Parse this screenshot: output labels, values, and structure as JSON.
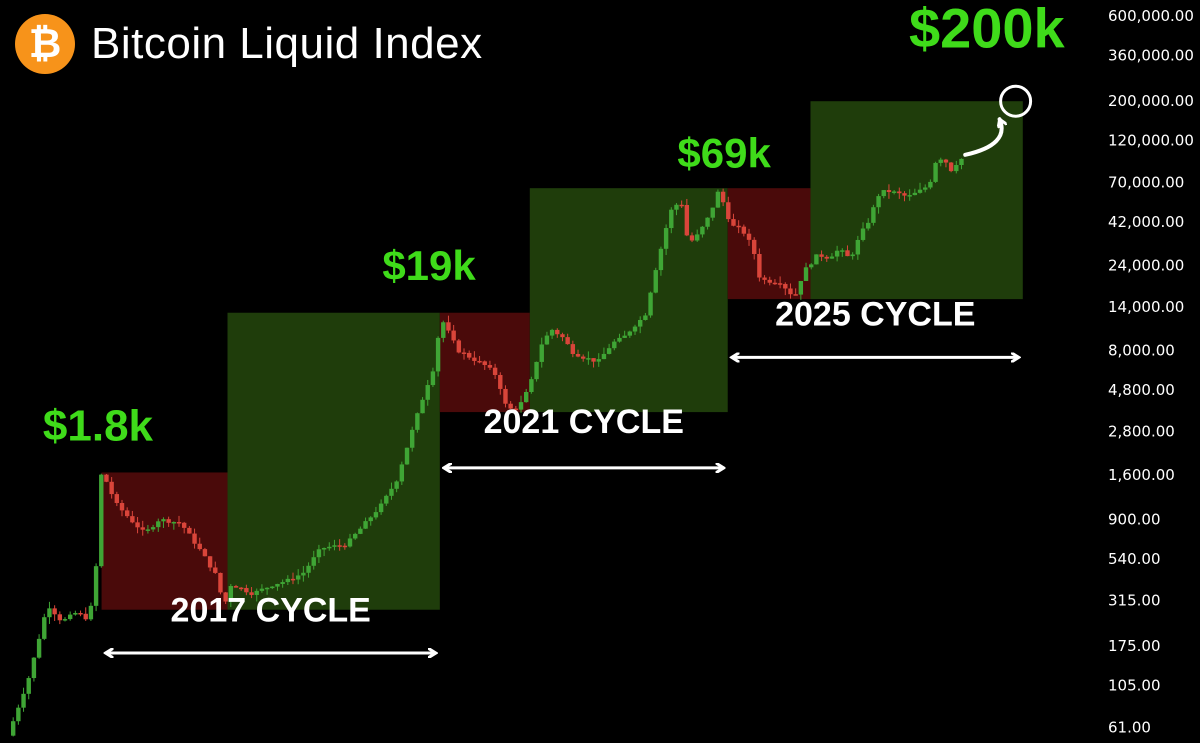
{
  "header": {
    "title": "Bitcoin Liquid Index",
    "logo_symbol": "₿",
    "logo_color": "#f7931a"
  },
  "colors": {
    "background": "#000000",
    "up_candle": "#3fa535",
    "down_candle": "#d9453a",
    "bull_zone": "#1f3d0b",
    "bear_zone": "#4a0a0a",
    "annotation_green": "#3fdb1a",
    "text": "#ffffff"
  },
  "chart_data": {
    "type": "candlestick",
    "title": "Bitcoin Liquid Index",
    "yscale": "log",
    "ylim": [
      52,
      650000
    ],
    "xlim": [
      2012.0,
      2026.2
    ],
    "y_ticks": [
      {
        "value": 600000,
        "label": "600,000.00"
      },
      {
        "value": 360000,
        "label": "360,000.00"
      },
      {
        "value": 200000,
        "label": "200,000.00"
      },
      {
        "value": 120000,
        "label": "120,000.00"
      },
      {
        "value": 70000,
        "label": "70,000.00"
      },
      {
        "value": 42000,
        "label": "42,000.00"
      },
      {
        "value": 24000,
        "label": "24,000.00"
      },
      {
        "value": 14000,
        "label": "14,000.00"
      },
      {
        "value": 8000,
        "label": "8,000.00"
      },
      {
        "value": 4800,
        "label": "4,800.00"
      },
      {
        "value": 2800,
        "label": "2,800.00"
      },
      {
        "value": 1600,
        "label": "1,600.00"
      },
      {
        "value": 900,
        "label": "900.00"
      },
      {
        "value": 540,
        "label": "540.00"
      },
      {
        "value": 315,
        "label": "315.00"
      },
      {
        "value": 175,
        "label": "175.00"
      },
      {
        "value": 105,
        "label": "105.00"
      },
      {
        "value": 61,
        "label": "61.00"
      }
    ],
    "price_path": [
      [
        2012.0,
        55
      ],
      [
        2012.3,
        120
      ],
      [
        2012.55,
        300
      ],
      [
        2012.75,
        240
      ],
      [
        2012.95,
        270
      ],
      [
        2013.1,
        250
      ],
      [
        2013.2,
        330
      ],
      [
        2013.3,
        1700
      ],
      [
        2013.5,
        1100
      ],
      [
        2013.7,
        900
      ],
      [
        2013.9,
        750
      ],
      [
        2014.1,
        900
      ],
      [
        2014.4,
        860
      ],
      [
        2014.7,
        580
      ],
      [
        2014.9,
        430
      ],
      [
        2015.0,
        290
      ],
      [
        2015.1,
        390
      ],
      [
        2015.4,
        345
      ],
      [
        2015.7,
        390
      ],
      [
        2015.9,
        410
      ],
      [
        2016.1,
        450
      ],
      [
        2016.35,
        620
      ],
      [
        2016.7,
        650
      ],
      [
        2016.9,
        800
      ],
      [
        2017.2,
        1100
      ],
      [
        2017.4,
        1500
      ],
      [
        2017.6,
        2700
      ],
      [
        2017.8,
        4800
      ],
      [
        2017.95,
        7000
      ],
      [
        2018.0,
        12500
      ],
      [
        2018.1,
        10500
      ],
      [
        2018.25,
        8000
      ],
      [
        2018.45,
        7200
      ],
      [
        2018.65,
        6500
      ],
      [
        2018.8,
        5700
      ],
      [
        2018.9,
        4000
      ],
      [
        2019.0,
        3700
      ],
      [
        2019.1,
        3850
      ],
      [
        2019.25,
        5000
      ],
      [
        2019.4,
        8500
      ],
      [
        2019.55,
        10500
      ],
      [
        2019.7,
        9500
      ],
      [
        2019.85,
        7800
      ],
      [
        2020.0,
        7300
      ],
      [
        2020.2,
        6900
      ],
      [
        2020.4,
        8800
      ],
      [
        2020.55,
        9400
      ],
      [
        2020.7,
        11000
      ],
      [
        2020.85,
        12500
      ],
      [
        2021.0,
        23000
      ],
      [
        2021.1,
        33000
      ],
      [
        2021.2,
        48000
      ],
      [
        2021.35,
        56000
      ],
      [
        2021.45,
        32000
      ],
      [
        2021.55,
        34000
      ],
      [
        2021.7,
        42000
      ],
      [
        2021.8,
        52000
      ],
      [
        2021.88,
        64000
      ],
      [
        2021.95,
        52000
      ],
      [
        2022.05,
        40000
      ],
      [
        2022.2,
        38000
      ],
      [
        2022.35,
        30000
      ],
      [
        2022.45,
        20000
      ],
      [
        2022.6,
        19500
      ],
      [
        2022.75,
        19300
      ],
      [
        2022.85,
        16800
      ],
      [
        2022.95,
        16500
      ],
      [
        2023.05,
        22000
      ],
      [
        2023.25,
        27500
      ],
      [
        2023.4,
        26500
      ],
      [
        2023.55,
        29500
      ],
      [
        2023.7,
        26000
      ],
      [
        2023.85,
        36000
      ],
      [
        2023.95,
        42000
      ],
      [
        2024.1,
        60000
      ],
      [
        2024.2,
        63000
      ],
      [
        2024.35,
        61000
      ],
      [
        2024.5,
        58000
      ],
      [
        2024.65,
        62000
      ],
      [
        2024.8,
        68000
      ],
      [
        2024.9,
        95000
      ],
      [
        2025.0,
        96000
      ],
      [
        2025.1,
        82000
      ],
      [
        2025.2,
        92000
      ],
      [
        2025.3,
        98000
      ]
    ],
    "zones": [
      {
        "type": "bear",
        "x": [
          2013.3,
          2015.05
        ],
        "y": [
          280,
          1650
        ]
      },
      {
        "type": "bull",
        "x": [
          2015.05,
          2018.0
        ],
        "y": [
          280,
          13000
        ]
      },
      {
        "type": "bear",
        "x": [
          2018.0,
          2019.25
        ],
        "y": [
          3600,
          13000
        ]
      },
      {
        "type": "bull",
        "x": [
          2019.25,
          2022.0
        ],
        "y": [
          3600,
          65000
        ]
      },
      {
        "type": "bear",
        "x": [
          2022.0,
          2023.15
        ],
        "y": [
          15500,
          65000
        ]
      },
      {
        "type": "bull",
        "x": [
          2023.15,
          2026.1
        ],
        "y": [
          15500,
          200000
        ]
      }
    ],
    "cycles": [
      {
        "label": "2017 CYCLE",
        "x": [
          2013.3,
          2018.0
        ],
        "arrow_y": 160,
        "label_y": 240
      },
      {
        "label": "2021 CYCLE",
        "x": [
          2018.0,
          2022.0
        ],
        "arrow_y": 1750,
        "label_y": 2750
      },
      {
        "label": "2025 CYCLE",
        "x": [
          2022.0,
          2026.1
        ],
        "arrow_y": 7300,
        "label_y": 11000
      }
    ],
    "annotations": [
      {
        "label": "$1.8k",
        "x": 2013.25,
        "y": 2500,
        "size": 44
      },
      {
        "label": "$19k",
        "x": 2017.85,
        "y": 19800,
        "size": 42
      },
      {
        "label": "$69k",
        "x": 2021.95,
        "y": 85000,
        "size": 42
      },
      {
        "label": "$200k",
        "x": 2025.6,
        "y": 400000,
        "size": 56
      }
    ],
    "target": {
      "x": 2026.0,
      "y": 200000,
      "from": [
        2025.3,
        100000
      ]
    }
  }
}
